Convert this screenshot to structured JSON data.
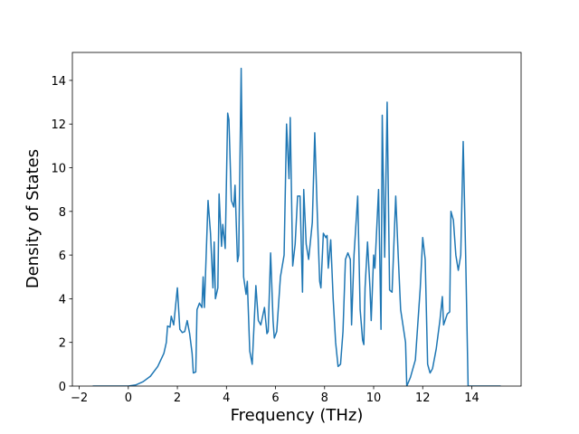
{
  "chart_data": {
    "type": "line",
    "xlabel": "Frequency (THz)",
    "ylabel": "Density of States",
    "x": [
      -1.45,
      0,
      0.3,
      0.6,
      0.9,
      1.2,
      1.45,
      1.55,
      1.6,
      1.7,
      1.75,
      1.85,
      2.0,
      2.1,
      2.2,
      2.3,
      2.4,
      2.5,
      2.6,
      2.65,
      2.75,
      2.8,
      2.9,
      3.0,
      3.05,
      3.1,
      3.25,
      3.35,
      3.45,
      3.5,
      3.55,
      3.65,
      3.7,
      3.8,
      3.85,
      3.95,
      4.05,
      4.1,
      4.2,
      4.3,
      4.35,
      4.45,
      4.5,
      4.6,
      4.7,
      4.8,
      4.85,
      4.95,
      5.05,
      5.2,
      5.3,
      5.4,
      5.55,
      5.65,
      5.7,
      5.8,
      5.9,
      5.95,
      6.05,
      6.2,
      6.35,
      6.45,
      6.55,
      6.6,
      6.7,
      6.8,
      6.9,
      7.0,
      7.1,
      7.15,
      7.25,
      7.35,
      7.5,
      7.6,
      7.7,
      7.8,
      7.85,
      7.95,
      8.05,
      8.1,
      8.15,
      8.25,
      8.35,
      8.45,
      8.55,
      8.65,
      8.75,
      8.85,
      8.95,
      9.05,
      9.1,
      9.2,
      9.35,
      9.45,
      9.55,
      9.6,
      9.65,
      9.75,
      9.85,
      9.9,
      10.0,
      10.05,
      10.2,
      10.3,
      10.35,
      10.45,
      10.55,
      10.65,
      10.75,
      10.9,
      11.0,
      11.1,
      11.3,
      11.35,
      11.5,
      11.7,
      11.9,
      12.0,
      12.1,
      12.2,
      12.3,
      12.4,
      12.55,
      12.7,
      12.8,
      12.85,
      13.0,
      13.1,
      13.15,
      13.25,
      13.35,
      13.45,
      13.55,
      13.65,
      13.75,
      13.85,
      15.18
    ],
    "series": [
      {
        "color": "#1f77b4",
        "values": [
          0,
          0,
          0.05,
          0.2,
          0.45,
          0.9,
          1.5,
          2.0,
          2.75,
          2.7,
          3.2,
          2.8,
          4.5,
          2.6,
          2.45,
          2.5,
          3.0,
          2.4,
          1.5,
          0.6,
          0.65,
          3.5,
          3.8,
          3.6,
          5.0,
          3.6,
          8.5,
          7.0,
          4.5,
          6.6,
          4.0,
          4.5,
          8.8,
          6.4,
          7.4,
          6.3,
          12.5,
          12.2,
          8.5,
          8.2,
          9.2,
          5.7,
          6.0,
          14.55,
          5.0,
          4.2,
          4.8,
          1.6,
          1.0,
          4.6,
          3.0,
          2.8,
          3.6,
          2.4,
          2.5,
          6.1,
          3.0,
          2.2,
          2.5,
          5.0,
          6.0,
          12.0,
          9.5,
          12.3,
          5.5,
          6.5,
          8.7,
          8.7,
          4.3,
          9.0,
          6.5,
          5.8,
          7.5,
          11.6,
          8.0,
          4.8,
          4.5,
          7.0,
          6.8,
          6.9,
          5.4,
          6.7,
          4.0,
          2.0,
          0.9,
          1.0,
          2.5,
          5.8,
          6.1,
          5.8,
          2.8,
          6.0,
          8.7,
          3.5,
          2.1,
          1.9,
          4.5,
          6.6,
          4.5,
          3.0,
          6.0,
          5.4,
          9.0,
          2.6,
          12.4,
          5.9,
          13.0,
          4.4,
          4.3,
          8.7,
          6.0,
          3.5,
          2.0,
          0,
          0.4,
          1.2,
          4.5,
          6.8,
          5.8,
          1.0,
          0.6,
          0.8,
          1.7,
          3.0,
          4.1,
          2.8,
          3.3,
          3.4,
          8.0,
          7.6,
          6.0,
          5.3,
          6.0,
          11.2,
          6.0,
          0,
          0
        ]
      }
    ],
    "xlim": [
      -2.28,
      16.01
    ],
    "ylim": [
      0,
      15.28
    ],
    "xticks": [
      {
        "value": -2,
        "label": "−2"
      },
      0,
      2,
      4,
      6,
      8,
      10,
      12,
      14
    ],
    "yticks": [
      0,
      2,
      4,
      6,
      8,
      10,
      12,
      14
    ]
  }
}
